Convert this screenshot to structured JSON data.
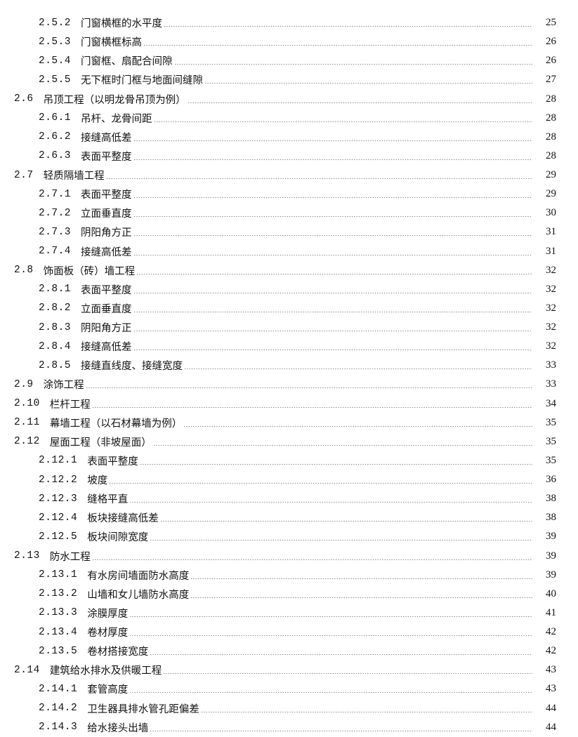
{
  "toc": [
    {
      "level": 2,
      "num": "2.5.2",
      "title": "门窗横框的水平度",
      "page": "25"
    },
    {
      "level": 2,
      "num": "2.5.3",
      "title": "门窗横框标高",
      "page": "26"
    },
    {
      "level": 2,
      "num": "2.5.4",
      "title": "门窗框、扇配合间隙",
      "page": "26"
    },
    {
      "level": 2,
      "num": "2.5.5",
      "title": "无下框时门框与地面间缝隙",
      "page": "27"
    },
    {
      "level": 1,
      "num": "2.6",
      "title": "吊顶工程（以明龙骨吊顶为例）",
      "page": "28"
    },
    {
      "level": 2,
      "num": "2.6.1",
      "title": "吊杆、龙骨间距",
      "page": "28"
    },
    {
      "level": 2,
      "num": "2.6.2",
      "title": "接缝高低差",
      "page": "28"
    },
    {
      "level": 2,
      "num": "2.6.3",
      "title": "表面平整度",
      "page": "28"
    },
    {
      "level": 1,
      "num": "2.7",
      "title": "轻质隔墙工程",
      "page": "29"
    },
    {
      "level": 2,
      "num": "2.7.1",
      "title": "表面平整度",
      "page": "29"
    },
    {
      "level": 2,
      "num": "2.7.2",
      "title": "立面垂直度",
      "page": "30"
    },
    {
      "level": 2,
      "num": "2.7.3",
      "title": "阴阳角方正",
      "page": "31"
    },
    {
      "level": 2,
      "num": "2.7.4",
      "title": "接缝高低差",
      "page": "31"
    },
    {
      "level": 1,
      "num": "2.8",
      "title": "饰面板（砖）墙工程",
      "page": "32"
    },
    {
      "level": 2,
      "num": "2.8.1",
      "title": "表面平整度",
      "page": "32"
    },
    {
      "level": 2,
      "num": "2.8.2",
      "title": "立面垂直度",
      "page": "32"
    },
    {
      "level": 2,
      "num": "2.8.3",
      "title": "阴阳角方正",
      "page": "32"
    },
    {
      "level": 2,
      "num": "2.8.4",
      "title": "接缝高低差",
      "page": "32"
    },
    {
      "level": 2,
      "num": "2.8.5",
      "title": "接缝直线度、接缝宽度",
      "page": "33"
    },
    {
      "level": 1,
      "num": "2.9",
      "title": "涂饰工程",
      "page": "33"
    },
    {
      "level": 1,
      "num": "2.10",
      "title": "栏杆工程",
      "page": "34"
    },
    {
      "level": 1,
      "num": "2.11",
      "title": "幕墙工程（以石材幕墙为例）",
      "page": "35"
    },
    {
      "level": 1,
      "num": "2.12",
      "title": "屋面工程（非坡屋面）",
      "page": "35"
    },
    {
      "level": 2,
      "num": "2.12.1",
      "title": "表面平整度",
      "page": "35"
    },
    {
      "level": 2,
      "num": "2.12.2",
      "title": "坡度",
      "page": "36"
    },
    {
      "level": 2,
      "num": "2.12.3",
      "title": "缝格平直",
      "page": "38"
    },
    {
      "level": 2,
      "num": "2.12.4",
      "title": "板块接缝高低差",
      "page": "38"
    },
    {
      "level": 2,
      "num": "2.12.5",
      "title": "板块间隙宽度",
      "page": "39"
    },
    {
      "level": 1,
      "num": "2.13",
      "title": "防水工程",
      "page": "39"
    },
    {
      "level": 2,
      "num": "2.13.1",
      "title": "有水房间墙面防水高度",
      "page": "39"
    },
    {
      "level": 2,
      "num": "2.13.2",
      "title": "山墙和女儿墙防水高度",
      "page": "40"
    },
    {
      "level": 2,
      "num": "2.13.3",
      "title": "涂膜厚度",
      "page": "41"
    },
    {
      "level": 2,
      "num": "2.13.4",
      "title": "卷材厚度",
      "page": "42"
    },
    {
      "level": 2,
      "num": "2.13.5",
      "title": "卷材搭接宽度",
      "page": "42"
    },
    {
      "level": 1,
      "num": "2.14",
      "title": "建筑给水排水及供暖工程",
      "page": "43"
    },
    {
      "level": 2,
      "num": "2.14.1",
      "title": "套管高度",
      "page": "43"
    },
    {
      "level": 2,
      "num": "2.14.2",
      "title": "卫生器具排水管孔距偏差",
      "page": "44"
    },
    {
      "level": 2,
      "num": "2.14.3",
      "title": "给水接头出墙",
      "page": "44"
    }
  ]
}
